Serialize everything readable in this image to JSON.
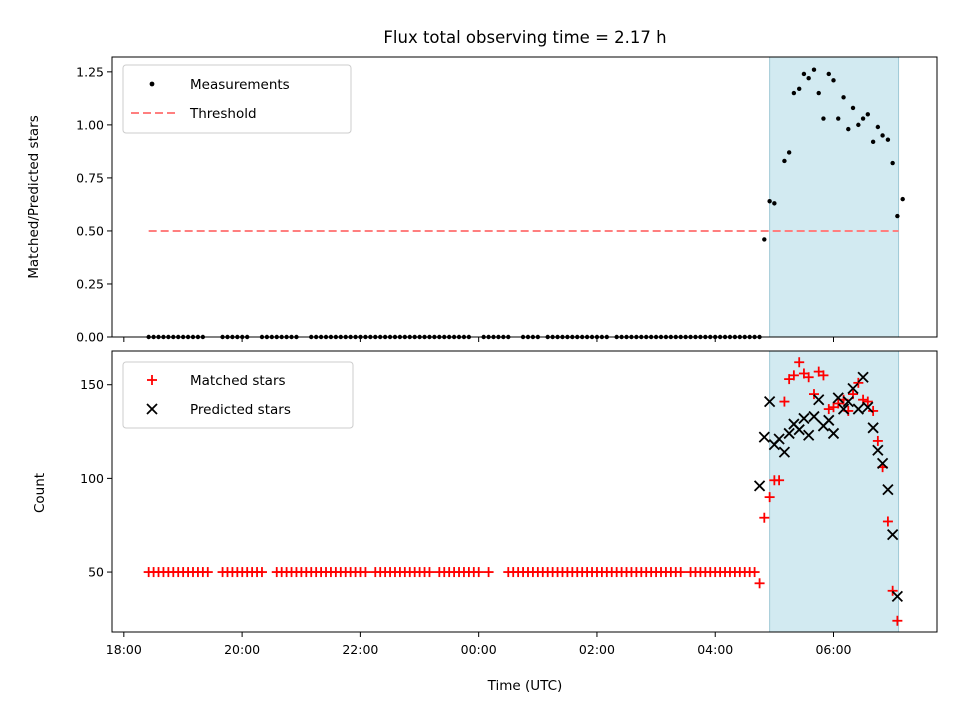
{
  "chart_data": {
    "title": "Flux total observing time = 2.17 h",
    "xlabel": "Time (UTC)",
    "x_ticks": [
      "18:00",
      "20:00",
      "22:00",
      "00:00",
      "02:00",
      "04:00",
      "06:00"
    ],
    "x_tick_hours": [
      0,
      2,
      4,
      6,
      8,
      10,
      12
    ],
    "x_range_hours_from_1800": [
      -0.2,
      13.75
    ],
    "shaded_region_hours": [
      10.92,
      13.1
    ],
    "shaded_color": "#add8e6",
    "panels": [
      {
        "type": "scatter",
        "ylabel": "Matched/Predicted stars",
        "ylim": [
          0,
          1.32
        ],
        "yticks": [
          "0.00",
          "0.25",
          "0.50",
          "0.75",
          "1.00",
          "1.25"
        ],
        "ytick_values": [
          0,
          0.25,
          0.5,
          0.75,
          1.0,
          1.25
        ],
        "legend": [
          "Measurements",
          "Threshold"
        ],
        "legend_position": "upper left",
        "threshold": {
          "name": "Threshold",
          "value": 0.5,
          "x_start": 0.42,
          "x_end": 13.1,
          "color": "#ff7f7f"
        },
        "measurements": {
          "name": "Measurements",
          "color": "#000000",
          "x_zero_start": 0.42,
          "x_zero_end": 10.75,
          "x_zero_step": 0.0833,
          "x_zero_gaps": [
            [
              1.4,
              1.6
            ],
            [
              2.1,
              2.3
            ],
            [
              3.0,
              3.15
            ],
            [
              5.9,
              6.05
            ],
            [
              6.55,
              6.75
            ],
            [
              7.05,
              7.15
            ],
            [
              8.2,
              8.3
            ]
          ],
          "points": [
            [
              10.83,
              0.46
            ],
            [
              10.92,
              0.64
            ],
            [
              11.0,
              0.63
            ],
            [
              11.17,
              0.83
            ],
            [
              11.25,
              0.87
            ],
            [
              11.33,
              1.15
            ],
            [
              11.42,
              1.17
            ],
            [
              11.5,
              1.24
            ],
            [
              11.58,
              1.22
            ],
            [
              11.67,
              1.26
            ],
            [
              11.75,
              1.15
            ],
            [
              11.83,
              1.03
            ],
            [
              11.92,
              1.24
            ],
            [
              12.0,
              1.21
            ],
            [
              12.08,
              1.03
            ],
            [
              12.17,
              1.13
            ],
            [
              12.25,
              0.98
            ],
            [
              12.33,
              1.08
            ],
            [
              12.42,
              1.0
            ],
            [
              12.5,
              1.03
            ],
            [
              12.58,
              1.05
            ],
            [
              12.67,
              0.92
            ],
            [
              12.75,
              0.99
            ],
            [
              12.83,
              0.95
            ],
            [
              12.92,
              0.93
            ],
            [
              13.0,
              0.82
            ],
            [
              13.08,
              0.57
            ],
            [
              13.17,
              0.65
            ]
          ]
        }
      },
      {
        "type": "scatter",
        "ylabel": "Count",
        "ylim": [
          18,
          168
        ],
        "yticks": [
          "50",
          "100",
          "150"
        ],
        "ytick_values": [
          50,
          100,
          150
        ],
        "legend": [
          "Matched stars",
          "Predicted stars"
        ],
        "legend_position": "upper left",
        "matched_stars": {
          "name": "Matched stars",
          "color": "#ff0000",
          "marker": "+",
          "baseline_value": 50,
          "baseline_x_start": 0.42,
          "baseline_x_end": 10.7,
          "baseline_step": 0.0833,
          "baseline_gaps": [
            [
              1.5,
              1.65
            ],
            [
              2.35,
              2.55
            ],
            [
              4.1,
              4.2
            ],
            [
              5.2,
              5.3
            ],
            [
              6.05,
              6.15
            ],
            [
              6.25,
              6.45
            ],
            [
              9.45,
              9.55
            ]
          ],
          "points": [
            [
              10.75,
              44
            ],
            [
              10.83,
              79
            ],
            [
              10.92,
              90
            ],
            [
              11.0,
              99
            ],
            [
              11.08,
              99
            ],
            [
              11.17,
              141
            ],
            [
              11.25,
              153
            ],
            [
              11.33,
              155
            ],
            [
              11.42,
              162
            ],
            [
              11.5,
              156
            ],
            [
              11.58,
              154
            ],
            [
              11.67,
              145
            ],
            [
              11.75,
              157
            ],
            [
              11.83,
              155
            ],
            [
              11.92,
              137
            ],
            [
              12.0,
              138
            ],
            [
              12.08,
              140
            ],
            [
              12.17,
              142
            ],
            [
              12.25,
              136
            ],
            [
              12.33,
              145
            ],
            [
              12.42,
              151
            ],
            [
              12.5,
              142
            ],
            [
              12.58,
              141
            ],
            [
              12.67,
              136
            ],
            [
              12.75,
              120
            ],
            [
              12.83,
              106
            ],
            [
              12.92,
              77
            ],
            [
              13.0,
              40
            ],
            [
              13.08,
              24
            ]
          ]
        },
        "predicted_stars": {
          "name": "Predicted stars",
          "color": "#000000",
          "marker": "x",
          "points": [
            [
              10.75,
              96
            ],
            [
              10.83,
              122
            ],
            [
              10.92,
              141
            ],
            [
              11.0,
              118
            ],
            [
              11.08,
              121
            ],
            [
              11.17,
              114
            ],
            [
              11.25,
              124
            ],
            [
              11.33,
              129
            ],
            [
              11.42,
              126
            ],
            [
              11.5,
              132
            ],
            [
              11.58,
              123
            ],
            [
              11.67,
              133
            ],
            [
              11.75,
              142
            ],
            [
              11.83,
              128
            ],
            [
              11.92,
              131
            ],
            [
              12.0,
              124
            ],
            [
              12.08,
              143
            ],
            [
              12.17,
              137
            ],
            [
              12.25,
              141
            ],
            [
              12.33,
              148
            ],
            [
              12.42,
              137
            ],
            [
              12.5,
              154
            ],
            [
              12.58,
              138
            ],
            [
              12.67,
              127
            ],
            [
              12.75,
              115
            ],
            [
              12.83,
              108
            ],
            [
              12.92,
              94
            ],
            [
              13.0,
              70
            ],
            [
              13.08,
              37
            ]
          ]
        }
      }
    ]
  }
}
